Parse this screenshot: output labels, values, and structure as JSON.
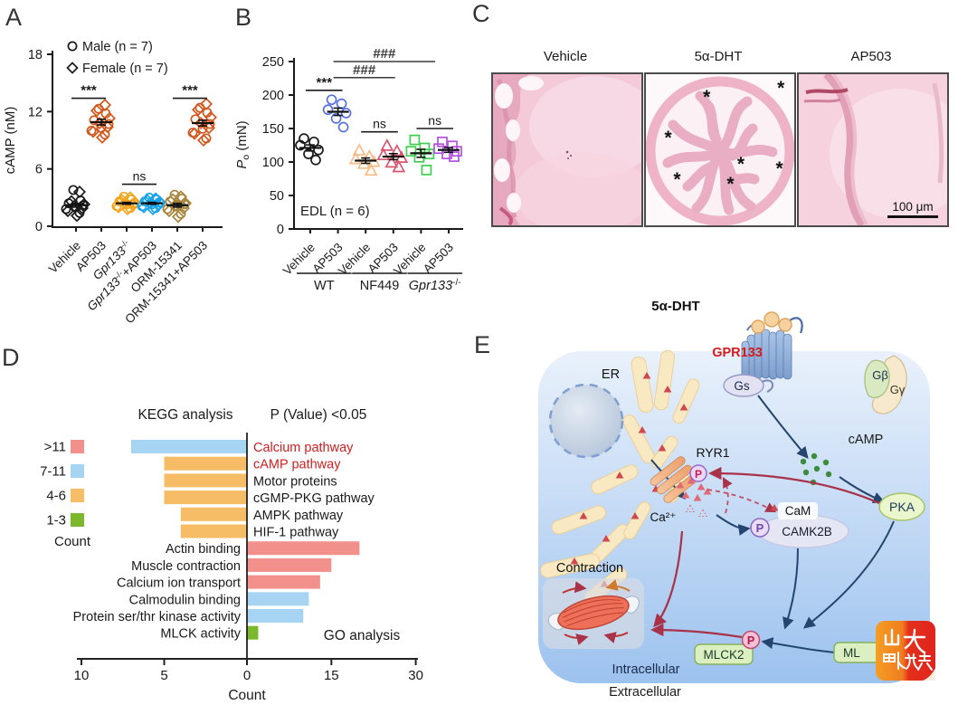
{
  "panels": {
    "a_label": "A",
    "b_label": "B",
    "c_label": "C",
    "d_label": "D",
    "e_label": "E"
  },
  "chart_data": [
    {
      "id": "panelA",
      "type": "scatter",
      "ylabel": "cAMP (nM)",
      "ylim": [
        0,
        18
      ],
      "yticks": [
        0,
        6,
        12,
        18
      ],
      "legend": [
        {
          "marker": "circle",
          "label": "Male (n = 7)"
        },
        {
          "marker": "diamond",
          "label": "Female (n = 7)"
        }
      ],
      "groups": [
        {
          "label": {
            "main": "Vehicle"
          },
          "color": "#1a1a1a",
          "male": [
            3.8,
            2.7,
            2.4,
            2.2,
            2.0,
            1.8,
            1.4
          ],
          "female": [
            3.6,
            2.6,
            2.3,
            2.1,
            1.9,
            1.6,
            1.1
          ],
          "mean": 2.2,
          "sem": 0.2
        },
        {
          "label": {
            "main": "AP503"
          },
          "color": "#d2571c",
          "male": [
            12.3,
            11.8,
            11.1,
            10.7,
            10.3,
            10.0,
            9.6
          ],
          "female": [
            12.7,
            12.1,
            11.3,
            10.8,
            10.4,
            9.9,
            9.3
          ],
          "mean": 10.9,
          "sem": 0.3
        },
        {
          "label": {
            "main": "Gpr133",
            "sup": "-/-",
            "italic": true
          },
          "color": "#f2a41c",
          "male": [
            3.1,
            2.8,
            2.6,
            2.4,
            2.3,
            2.1,
            1.9
          ],
          "female": [
            3.0,
            2.7,
            2.5,
            2.4,
            2.2,
            2.0,
            1.8
          ],
          "mean": 2.4,
          "sem": 0.1
        },
        {
          "label": {
            "main": "Gpr133",
            "sup": "-/-",
            "suffix": "+AP503",
            "italic": true
          },
          "color": "#18a3e8",
          "male": [
            3.0,
            2.8,
            2.6,
            2.5,
            2.3,
            2.1,
            1.9
          ],
          "female": [
            2.9,
            2.7,
            2.5,
            2.4,
            2.2,
            2.0,
            1.8
          ],
          "mean": 2.4,
          "sem": 0.1
        },
        {
          "label": {
            "main": "ORM-15341"
          },
          "color": "#a8853c",
          "male": [
            3.3,
            2.9,
            2.6,
            2.3,
            2.1,
            1.8,
            1.3
          ],
          "female": [
            3.1,
            2.8,
            2.4,
            2.2,
            1.9,
            1.6,
            1.0
          ],
          "mean": 2.2,
          "sem": 0.2
        },
        {
          "label": {
            "main": "ORM-15341+AP503"
          },
          "color": "#d2571c",
          "male": [
            12.4,
            11.9,
            11.2,
            10.7,
            10.2,
            9.8,
            9.2
          ],
          "female": [
            12.8,
            12.2,
            11.4,
            10.8,
            10.3,
            9.7,
            9.0
          ],
          "mean": 10.8,
          "sem": 0.3
        }
      ],
      "annotations": [
        {
          "text": "***",
          "from": 0,
          "to": 1,
          "y": 13.4,
          "bold": true
        },
        {
          "text": "ns",
          "from": 2,
          "to": 3,
          "y": 4.4
        },
        {
          "text": "***",
          "from": 4,
          "to": 5,
          "y": 13.4,
          "bold": true
        }
      ]
    },
    {
      "id": "panelB",
      "type": "scatter",
      "ylabel": {
        "italic": "P",
        "sub": "o",
        "rest": " (mN)"
      },
      "ylim": [
        0,
        250
      ],
      "yticks": [
        0,
        50,
        100,
        150,
        200,
        250
      ],
      "note": "EDL (n = 6)",
      "groups": [
        {
          "label": {
            "main": "Vehicle"
          },
          "marker": "circle",
          "color": "#1a1a1a",
          "values": [
            135,
            130,
            125,
            118,
            112,
            103
          ],
          "mean": 121,
          "sem": 4.5
        },
        {
          "label": {
            "main": "AP503"
          },
          "marker": "circle",
          "color": "#5572e0",
          "values": [
            193,
            187,
            178,
            173,
            165,
            152
          ],
          "mean": 175,
          "sem": 5.5
        },
        {
          "label": {
            "main": "Vehicle"
          },
          "marker": "triangle",
          "color": "#f6be86",
          "values": [
            117,
            108,
            104,
            100,
            97,
            87
          ],
          "mean": 102,
          "sem": 4
        },
        {
          "label": {
            "main": "AP503"
          },
          "marker": "triangle",
          "color": "#d9566f",
          "values": [
            124,
            116,
            110,
            106,
            99,
            92
          ],
          "mean": 108,
          "sem": 4.5
        },
        {
          "label": {
            "main": "Vehicle"
          },
          "marker": "square",
          "color": "#3ecf50",
          "values": [
            133,
            121,
            116,
            112,
            107,
            88
          ],
          "mean": 113,
          "sem": 6
        },
        {
          "label": {
            "main": "AP503"
          },
          "marker": "square",
          "color": "#b152e0",
          "values": [
            130,
            124,
            120,
            116,
            112,
            108
          ],
          "mean": 118,
          "sem": 3.5
        }
      ],
      "group_labels": [
        {
          "label": {
            "main": "WT"
          },
          "span": [
            0,
            1
          ]
        },
        {
          "label": {
            "main": "NF449"
          },
          "span": [
            2,
            3
          ]
        },
        {
          "label": {
            "main": "Gpr133",
            "sup": "-/-",
            "italic": true
          },
          "span": [
            4,
            5
          ]
        }
      ],
      "annotations": [
        {
          "text": "***",
          "from": 0,
          "to": 1,
          "y": 207,
          "bold": true
        },
        {
          "text": "###",
          "from": 1,
          "to": 2.9,
          "y": 226,
          "bold": true,
          "color": "#3a3a3a"
        },
        {
          "text": "###",
          "from": 1,
          "to": 4.35,
          "y": 250,
          "bold": true,
          "color": "#3a3a3a"
        },
        {
          "text": "ns",
          "from": 2,
          "to": 3,
          "y": 145
        },
        {
          "text": "ns",
          "from": 4,
          "to": 5,
          "y": 150
        }
      ]
    },
    {
      "id": "panelD",
      "type": "diverging-bar",
      "title": "KEGG analysis",
      "subtitle": "P (Value) <0.05",
      "footer": "GO analysis",
      "xlabel": "Count",
      "legend_title": "Count",
      "legend": [
        {
          "label": ">11",
          "color": "#f2908c"
        },
        {
          "label": "7-11",
          "color": "#a6d4f2"
        },
        {
          "label": "4-6",
          "color": "#f6bc66"
        },
        {
          "label": "1-3",
          "color": "#7cb82e"
        }
      ],
      "left_ticks": [
        10,
        5,
        0
      ],
      "right_ticks": [
        15,
        30
      ],
      "kegg": [
        {
          "label": "Calcium pathway",
          "value": 7,
          "color": "#a6d4f2",
          "label_color": "#cc2020"
        },
        {
          "label": "cAMP pathway",
          "value": 5,
          "color": "#f6bc66",
          "label_color": "#cc2020"
        },
        {
          "label": "Motor proteins",
          "value": 5,
          "color": "#f6bc66"
        },
        {
          "label": "cGMP-PKG pathway",
          "value": 5,
          "color": "#f6bc66"
        },
        {
          "label": "AMPK pathway",
          "value": 4,
          "color": "#f6bc66"
        },
        {
          "label": "HIF-1 pathway",
          "value": 4,
          "color": "#f6bc66"
        }
      ],
      "go": [
        {
          "label": "Actin binding",
          "value": 20,
          "color": "#f2908c"
        },
        {
          "label": "Muscle contraction",
          "value": 15,
          "color": "#f2908c"
        },
        {
          "label": "Calcium ion transport",
          "value": 13,
          "color": "#f2908c"
        },
        {
          "label": "Calmodulin binding",
          "value": 11,
          "color": "#a6d4f2"
        },
        {
          "label": "Protein ser/thr kinase activity",
          "value": 10,
          "color": "#a6d4f2"
        },
        {
          "label": "MLCK activity",
          "value": 2,
          "color": "#7cb82e"
        }
      ]
    }
  ],
  "panelC": {
    "images": [
      {
        "title": "Vehicle"
      },
      {
        "title": "5α-DHT",
        "asterisks": [
          [
            0.91,
            0.08
          ],
          [
            0.41,
            0.14
          ],
          [
            0.15,
            0.41
          ],
          [
            0.64,
            0.58
          ],
          [
            0.9,
            0.61
          ],
          [
            0.21,
            0.68
          ],
          [
            0.57,
            0.71
          ]
        ]
      },
      {
        "title": "AP503",
        "scalebar": "100 μm"
      }
    ]
  },
  "panelE": {
    "ligand": "5α-DHT",
    "receptor": "GPR133",
    "gs": "Gs",
    "gbeta": "Gβ",
    "ggamma": "Gγ",
    "er": "ER",
    "ryr1": "RYR1",
    "p": "P",
    "ca": "Ca²⁺",
    "camp": "cAMP",
    "pka": "PKA",
    "cam": "CaM",
    "camk2b": "CAMK2B",
    "contraction": "Contraction",
    "mlck2": "MLCK2",
    "ml_partial": "ML",
    "intracellular": "Intracellular",
    "extracellular": "Extracellular",
    "logo_line1": "山大",
    "logo_line2": "融媒"
  }
}
